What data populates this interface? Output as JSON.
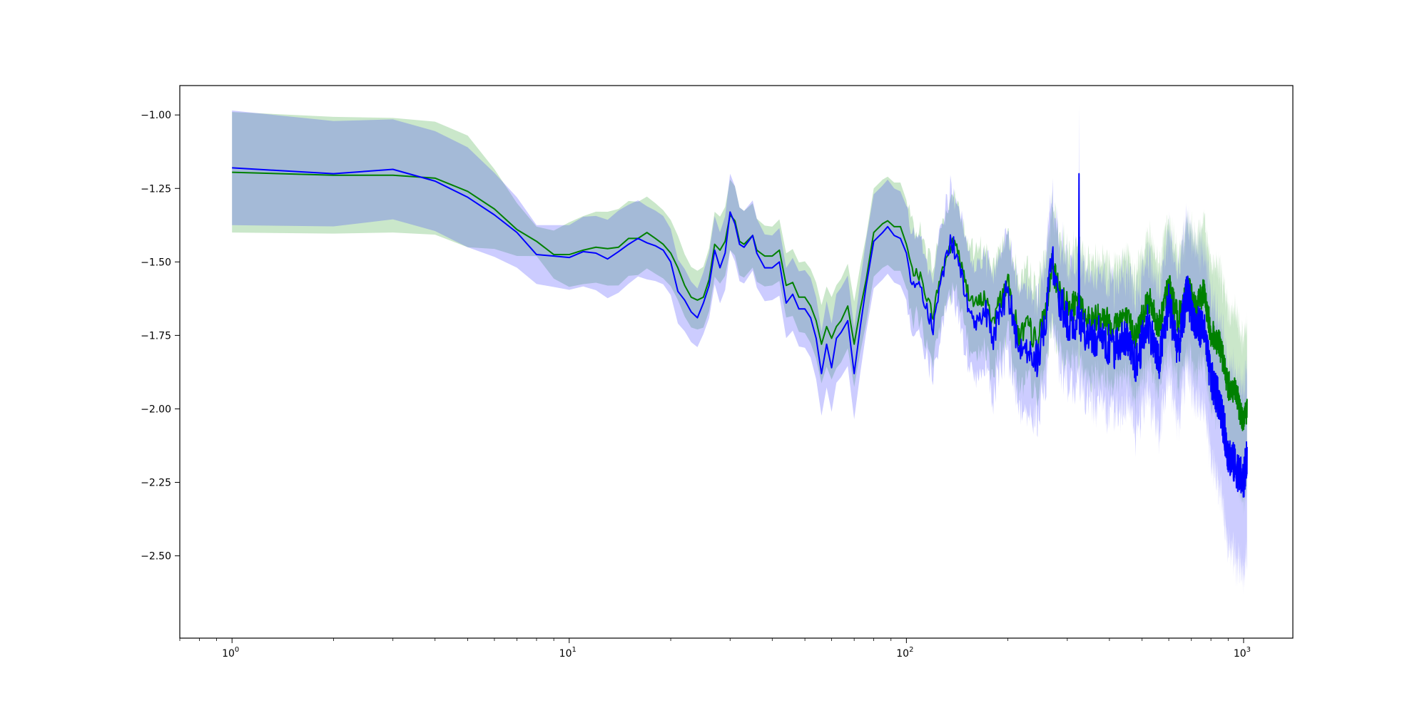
{
  "chart_data": {
    "type": "line",
    "title": "",
    "xlabel": "",
    "ylabel": "",
    "xscale": "log",
    "xlim": [
      0.7,
      1400
    ],
    "ylim": [
      -2.78,
      -0.9
    ],
    "grid": false,
    "legend": "none",
    "x_ticks": [
      {
        "base": "10",
        "exp": "0",
        "value": 1
      },
      {
        "base": "10",
        "exp": "1",
        "value": 10
      },
      {
        "base": "10",
        "exp": "2",
        "value": 100
      },
      {
        "base": "10",
        "exp": "3",
        "value": 1000
      }
    ],
    "y_ticks": [
      {
        "label": "−1.00",
        "value": -1.0
      },
      {
        "label": "−1.25",
        "value": -1.25
      },
      {
        "label": "−1.50",
        "value": -1.5
      },
      {
        "label": "−1.75",
        "value": -1.75
      },
      {
        "label": "−2.00",
        "value": -2.0
      },
      {
        "label": "−2.25",
        "value": -2.25
      },
      {
        "label": "−2.50",
        "value": -2.5
      }
    ],
    "series": [
      {
        "color": "#008000",
        "band_color": "#2ca02c",
        "anchors": [
          [
            1,
            -1.195
          ],
          [
            2,
            -1.205
          ],
          [
            3,
            -1.205
          ],
          [
            4,
            -1.215
          ],
          [
            5,
            -1.26
          ],
          [
            6,
            -1.32
          ],
          [
            7,
            -1.39
          ],
          [
            8,
            -1.43
          ],
          [
            9,
            -1.475
          ],
          [
            10,
            -1.475
          ],
          [
            11,
            -1.46
          ],
          [
            12,
            -1.45
          ],
          [
            13,
            -1.455
          ],
          [
            14,
            -1.45
          ],
          [
            15,
            -1.42
          ],
          [
            16,
            -1.42
          ],
          [
            17,
            -1.4
          ],
          [
            18,
            -1.42
          ],
          [
            19,
            -1.44
          ],
          [
            20,
            -1.47
          ],
          [
            21,
            -1.52
          ],
          [
            22,
            -1.58
          ],
          [
            23,
            -1.62
          ],
          [
            24,
            -1.63
          ],
          [
            25,
            -1.62
          ],
          [
            26,
            -1.56
          ],
          [
            27,
            -1.44
          ],
          [
            28,
            -1.46
          ],
          [
            29,
            -1.43
          ],
          [
            30,
            -1.34
          ],
          [
            31,
            -1.36
          ],
          [
            32,
            -1.43
          ],
          [
            33,
            -1.44
          ],
          [
            35,
            -1.41
          ],
          [
            36,
            -1.46
          ],
          [
            38,
            -1.48
          ],
          [
            40,
            -1.48
          ],
          [
            42,
            -1.46
          ],
          [
            44,
            -1.58
          ],
          [
            46,
            -1.57
          ],
          [
            48,
            -1.62
          ],
          [
            50,
            -1.62
          ],
          [
            52,
            -1.65
          ],
          [
            54,
            -1.7
          ],
          [
            56,
            -1.78
          ],
          [
            58,
            -1.72
          ],
          [
            60,
            -1.76
          ],
          [
            62,
            -1.72
          ],
          [
            64,
            -1.7
          ],
          [
            67,
            -1.65
          ],
          [
            70,
            -1.78
          ],
          [
            73,
            -1.66
          ],
          [
            76,
            -1.56
          ],
          [
            80,
            -1.4
          ],
          [
            85,
            -1.37
          ],
          [
            88,
            -1.36
          ],
          [
            92,
            -1.38
          ],
          [
            96,
            -1.38
          ],
          [
            100,
            -1.44
          ],
          [
            104,
            -1.53
          ],
          [
            110,
            -1.55
          ],
          [
            115,
            -1.62
          ],
          [
            120,
            -1.68
          ],
          [
            125,
            -1.57
          ],
          [
            130,
            -1.5
          ],
          [
            135,
            -1.45
          ],
          [
            140,
            -1.43
          ],
          [
            150,
            -1.58
          ],
          [
            160,
            -1.65
          ],
          [
            170,
            -1.62
          ],
          [
            180,
            -1.7
          ],
          [
            190,
            -1.63
          ],
          [
            200,
            -1.57
          ],
          [
            215,
            -1.75
          ],
          [
            230,
            -1.72
          ],
          [
            245,
            -1.78
          ],
          [
            260,
            -1.65
          ],
          [
            270,
            -1.52
          ],
          [
            280,
            -1.58
          ],
          [
            300,
            -1.65
          ],
          [
            325,
            -1.65
          ],
          [
            350,
            -1.7
          ],
          [
            380,
            -1.68
          ],
          [
            410,
            -1.72
          ],
          [
            440,
            -1.68
          ],
          [
            480,
            -1.75
          ],
          [
            520,
            -1.62
          ],
          [
            560,
            -1.72
          ],
          [
            600,
            -1.58
          ],
          [
            640,
            -1.7
          ],
          [
            680,
            -1.58
          ],
          [
            720,
            -1.66
          ],
          [
            760,
            -1.6
          ],
          [
            800,
            -1.74
          ],
          [
            850,
            -1.78
          ],
          [
            900,
            -1.92
          ],
          [
            950,
            -1.95
          ],
          [
            1000,
            -2.05
          ],
          [
            1024,
            -2.0
          ]
        ],
        "band_anchors": [
          [
            1,
            0.205
          ],
          [
            3,
            0.195
          ],
          [
            5,
            0.19
          ],
          [
            8,
            0.05
          ],
          [
            10,
            0.11
          ],
          [
            14,
            0.13
          ],
          [
            18,
            0.12
          ],
          [
            24,
            0.1
          ],
          [
            30,
            0.12
          ],
          [
            40,
            0.1
          ],
          [
            60,
            0.14
          ],
          [
            80,
            0.15
          ],
          [
            100,
            0.15
          ],
          [
            200,
            0.18
          ],
          [
            400,
            0.2
          ],
          [
            700,
            0.22
          ],
          [
            1024,
            0.28
          ]
        ],
        "jitter_amplitude": 0.05
      },
      {
        "color": "#0000ff",
        "band_color": "#3333ff",
        "anchors": [
          [
            1,
            -1.18
          ],
          [
            2,
            -1.2
          ],
          [
            3,
            -1.185
          ],
          [
            4,
            -1.225
          ],
          [
            5,
            -1.28
          ],
          [
            6,
            -1.34
          ],
          [
            7,
            -1.4
          ],
          [
            8,
            -1.475
          ],
          [
            9,
            -1.48
          ],
          [
            10,
            -1.485
          ],
          [
            11,
            -1.465
          ],
          [
            12,
            -1.47
          ],
          [
            13,
            -1.49
          ],
          [
            14,
            -1.465
          ],
          [
            15,
            -1.44
          ],
          [
            16,
            -1.42
          ],
          [
            17,
            -1.435
          ],
          [
            18,
            -1.445
          ],
          [
            19,
            -1.46
          ],
          [
            20,
            -1.5
          ],
          [
            21,
            -1.6
          ],
          [
            22,
            -1.63
          ],
          [
            23,
            -1.67
          ],
          [
            24,
            -1.69
          ],
          [
            25,
            -1.64
          ],
          [
            26,
            -1.58
          ],
          [
            27,
            -1.46
          ],
          [
            28,
            -1.52
          ],
          [
            29,
            -1.47
          ],
          [
            30,
            -1.33
          ],
          [
            31,
            -1.37
          ],
          [
            32,
            -1.44
          ],
          [
            33,
            -1.45
          ],
          [
            35,
            -1.41
          ],
          [
            36,
            -1.47
          ],
          [
            38,
            -1.52
          ],
          [
            40,
            -1.52
          ],
          [
            42,
            -1.5
          ],
          [
            44,
            -1.64
          ],
          [
            46,
            -1.61
          ],
          [
            48,
            -1.66
          ],
          [
            50,
            -1.66
          ],
          [
            52,
            -1.69
          ],
          [
            54,
            -1.76
          ],
          [
            56,
            -1.88
          ],
          [
            58,
            -1.78
          ],
          [
            60,
            -1.86
          ],
          [
            62,
            -1.76
          ],
          [
            64,
            -1.74
          ],
          [
            67,
            -1.7
          ],
          [
            70,
            -1.88
          ],
          [
            73,
            -1.72
          ],
          [
            76,
            -1.58
          ],
          [
            80,
            -1.43
          ],
          [
            85,
            -1.4
          ],
          [
            88,
            -1.38
          ],
          [
            92,
            -1.41
          ],
          [
            96,
            -1.42
          ],
          [
            100,
            -1.47
          ],
          [
            104,
            -1.58
          ],
          [
            110,
            -1.59
          ],
          [
            115,
            -1.66
          ],
          [
            120,
            -1.73
          ],
          [
            125,
            -1.6
          ],
          [
            130,
            -1.52
          ],
          [
            135,
            -1.43
          ],
          [
            140,
            -1.46
          ],
          [
            150,
            -1.63
          ],
          [
            160,
            -1.72
          ],
          [
            170,
            -1.65
          ],
          [
            180,
            -1.77
          ],
          [
            190,
            -1.66
          ],
          [
            200,
            -1.6
          ],
          [
            215,
            -1.8
          ],
          [
            230,
            -1.78
          ],
          [
            245,
            -1.84
          ],
          [
            260,
            -1.68
          ],
          [
            270,
            -1.48
          ],
          [
            280,
            -1.6
          ],
          [
            300,
            -1.7
          ],
          [
            325,
            -1.72
          ],
          [
            350,
            -1.76
          ],
          [
            380,
            -1.75
          ],
          [
            410,
            -1.8
          ],
          [
            440,
            -1.75
          ],
          [
            480,
            -1.85
          ],
          [
            520,
            -1.7
          ],
          [
            560,
            -1.85
          ],
          [
            600,
            -1.64
          ],
          [
            640,
            -1.8
          ],
          [
            680,
            -1.6
          ],
          [
            720,
            -1.72
          ],
          [
            760,
            -1.72
          ],
          [
            800,
            -1.9
          ],
          [
            850,
            -1.98
          ],
          [
            900,
            -2.15
          ],
          [
            950,
            -2.2
          ],
          [
            1000,
            -2.25
          ],
          [
            1024,
            -2.15
          ]
        ],
        "band_anchors": [
          [
            1,
            0.195
          ],
          [
            3,
            0.17
          ],
          [
            5,
            0.17
          ],
          [
            8,
            0.1
          ],
          [
            10,
            0.11
          ],
          [
            14,
            0.14
          ],
          [
            18,
            0.12
          ],
          [
            24,
            0.1
          ],
          [
            30,
            0.13
          ],
          [
            40,
            0.11
          ],
          [
            60,
            0.15
          ],
          [
            80,
            0.16
          ],
          [
            100,
            0.16
          ],
          [
            200,
            0.2
          ],
          [
            400,
            0.22
          ],
          [
            700,
            0.25
          ],
          [
            1024,
            0.32
          ]
        ],
        "jitter_amplitude": 0.07,
        "spikes": [
          [
            325,
            -1.2
          ]
        ]
      }
    ]
  }
}
